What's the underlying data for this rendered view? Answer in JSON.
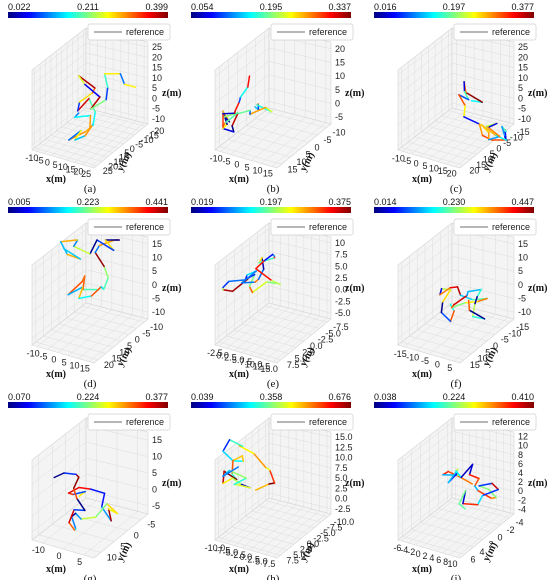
{
  "chart_data": [
    {
      "type": "line",
      "panel": "(a)",
      "colorbar": {
        "ticks": [
          "0.022",
          "0.211",
          "0.399"
        ]
      },
      "legend": "reference",
      "xlabel": "x(m)",
      "ylabel": "y(m)",
      "zlabel": "z(m)",
      "xticks": [
        "-10",
        "-5",
        "0",
        "5",
        "10",
        "15",
        "20",
        "25"
      ],
      "yticks": [
        "25",
        "20",
        "15",
        "10",
        "5",
        "0",
        "-5",
        "-10",
        "-15",
        "-20"
      ],
      "zticks": [
        "25",
        "20",
        "15",
        "10",
        "5",
        "0",
        "-5",
        "-10"
      ]
    },
    {
      "type": "line",
      "panel": "(b)",
      "colorbar": {
        "ticks": [
          "0.054",
          "0.195",
          "0.337"
        ]
      },
      "legend": "reference",
      "xlabel": "x(m)",
      "ylabel": "y(m)",
      "zlabel": "z(m)",
      "xticks": [
        "-10",
        "-5",
        "0",
        "5",
        "10",
        "15"
      ],
      "yticks": [
        "15",
        "10",
        "5",
        "0",
        "-5",
        "-10"
      ],
      "zticks": [
        "20",
        "15",
        "10",
        "5",
        "0",
        "-5"
      ]
    },
    {
      "type": "line",
      "panel": "(c)",
      "colorbar": {
        "ticks": [
          "0.016",
          "0.197",
          "0.377"
        ]
      },
      "legend": "reference",
      "xlabel": "x(m)",
      "ylabel": "y(m)",
      "zlabel": "z(m)",
      "xticks": [
        "-10",
        "-5",
        "0",
        "5",
        "10",
        "15",
        "20"
      ],
      "yticks": [
        "20",
        "15",
        "10",
        "5",
        "0",
        "-5",
        "-10",
        "-15"
      ],
      "zticks": [
        "25",
        "20",
        "15",
        "10",
        "5",
        "0",
        "-5",
        "-10"
      ]
    },
    {
      "type": "line",
      "panel": "(d)",
      "colorbar": {
        "ticks": [
          "0.005",
          "0.223",
          "0.441"
        ]
      },
      "legend": "reference",
      "xlabel": "x(m)",
      "ylabel": "y(m)",
      "zlabel": "z(m)",
      "xticks": [
        "-10",
        "-5",
        "0",
        "5",
        "10",
        "15"
      ],
      "yticks": [
        "20",
        "15",
        "10",
        "5",
        "0",
        "-5",
        "-10"
      ],
      "zticks": [
        "15",
        "10",
        "5",
        "0",
        "-5",
        "-10"
      ]
    },
    {
      "type": "line",
      "panel": "(e)",
      "colorbar": {
        "ticks": [
          "0.019",
          "0.197",
          "0.375"
        ]
      },
      "legend": "reference",
      "xlabel": "x(m)",
      "ylabel": "y(m)",
      "zlabel": "z(m)",
      "xticks": [
        "-2.5",
        "0.0",
        "2.5",
        "5.0",
        "7.5",
        "10.0",
        "12.5",
        "15.0"
      ],
      "yticks": [
        "7.5",
        "5.0",
        "2.5",
        "0.0",
        "-2.5",
        "-5.0",
        "-7.5"
      ],
      "zticks": [
        "10",
        "7.5",
        "5.0",
        "2.5",
        "0.0",
        "-2.5",
        "-5.0"
      ]
    },
    {
      "type": "line",
      "panel": "(f)",
      "colorbar": {
        "ticks": [
          "0.014",
          "0.230",
          "0.447"
        ]
      },
      "legend": "reference",
      "xlabel": "x(m)",
      "ylabel": "y(m)",
      "zlabel": "z(m)",
      "xticks": [
        "-15",
        "-10",
        "-5",
        "0",
        "5"
      ],
      "yticks": [
        "15",
        "10",
        "5",
        "0",
        "-5",
        "-10",
        "-15"
      ],
      "zticks": [
        "15",
        "10",
        "5",
        "0",
        "-5",
        "-10"
      ]
    },
    {
      "type": "line",
      "panel": "(g)",
      "colorbar": {
        "ticks": [
          "0.070",
          "0.224",
          "0.377"
        ]
      },
      "legend": "reference",
      "xlabel": "x(m)",
      "ylabel": "y(m)",
      "zlabel": "z(m)",
      "xticks": [
        "-10",
        "0",
        "5"
      ],
      "yticks": [
        "10",
        "5",
        "0",
        "-5"
      ],
      "zticks": [
        "15",
        "10",
        "5",
        "0",
        "-5"
      ]
    },
    {
      "type": "line",
      "panel": "(h)",
      "colorbar": {
        "ticks": [
          "0.039",
          "0.358",
          "0.676"
        ]
      },
      "legend": "reference",
      "xlabel": "x(m)",
      "ylabel": "y(m)",
      "zlabel": "z(m)",
      "xticks": [
        "-10.0",
        "-7.5",
        "-5.0",
        "-2.5",
        "0.0",
        "2.5",
        "5.0",
        "7.5"
      ],
      "yticks": [
        "7.5",
        "5.0",
        "2.5",
        "0.0",
        "-2.5",
        "-5.0",
        "-7.5",
        "-10.0"
      ],
      "zticks": [
        "15.0",
        "12.5",
        "10.0",
        "7.5",
        "5.0",
        "2.5",
        "0.0",
        "-2.5"
      ]
    },
    {
      "type": "line",
      "panel": "(i)",
      "colorbar": {
        "ticks": [
          "0.038",
          "0.224",
          "0.410"
        ]
      },
      "legend": "reference",
      "xlabel": "x(m)",
      "ylabel": "y(m)",
      "zlabel": "z(m)",
      "xticks": [
        "-6",
        "-4",
        "-2",
        "0",
        "2",
        "4",
        "6",
        "8",
        "10"
      ],
      "yticks": [
        "6",
        "4",
        "2",
        "0",
        "-2",
        "-4"
      ],
      "zticks": [
        "12",
        "10",
        "8",
        "6",
        "4",
        "2",
        "0",
        "-2",
        "-4"
      ]
    }
  ],
  "colors": {
    "colormap": [
      "#00007f",
      "#0030ff",
      "#00c8ff",
      "#7fff7f",
      "#ffd000",
      "#ff3000",
      "#7f0000"
    ],
    "reference_line": "#8a8a8a"
  }
}
